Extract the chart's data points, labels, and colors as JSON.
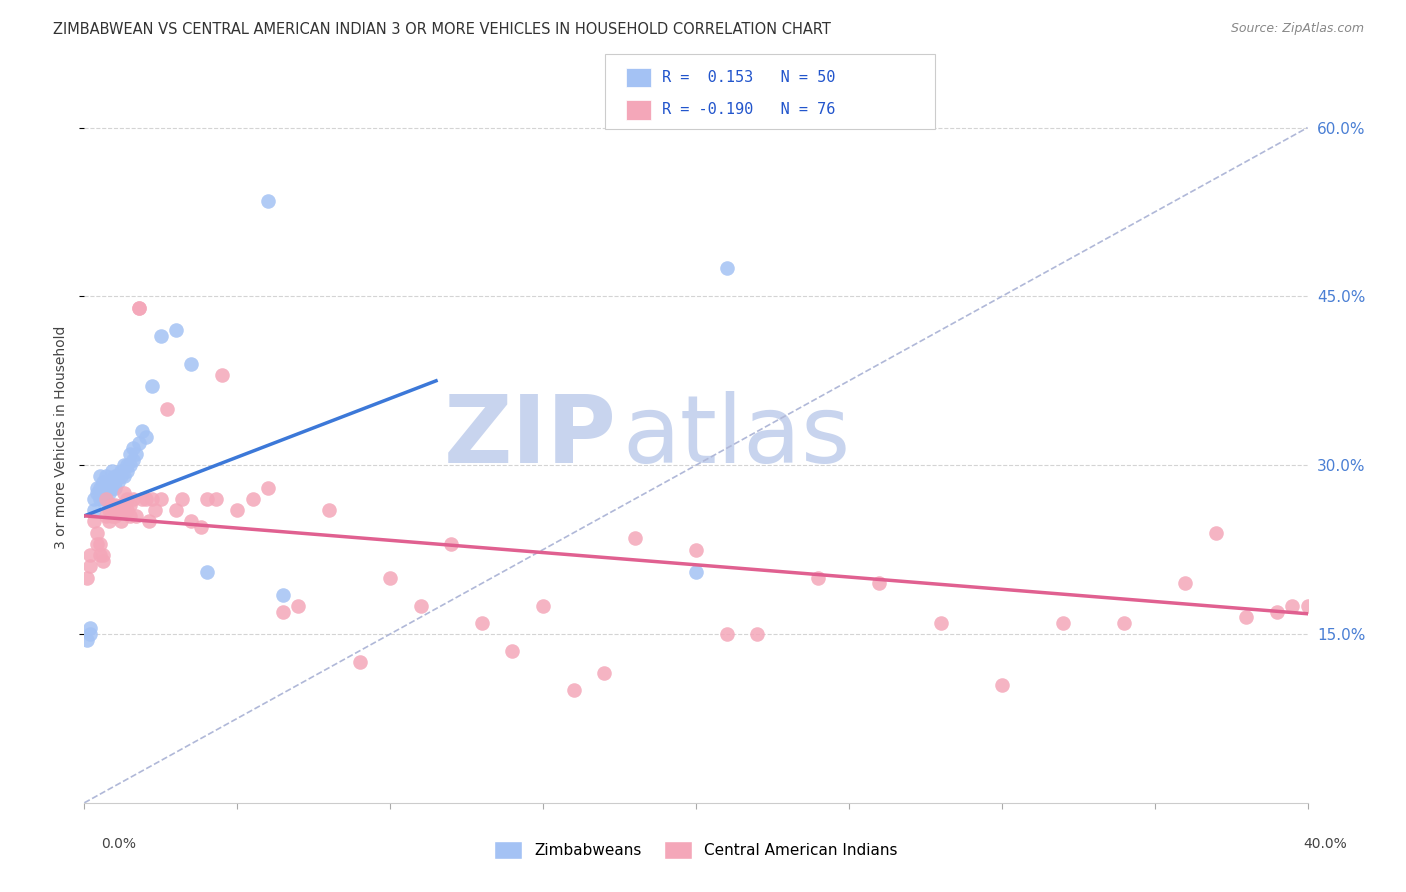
{
  "title": "ZIMBABWEAN VS CENTRAL AMERICAN INDIAN 3 OR MORE VEHICLES IN HOUSEHOLD CORRELATION CHART",
  "source": "Source: ZipAtlas.com",
  "ylabel": "3 or more Vehicles in Household",
  "xmin": 0.0,
  "xmax": 0.4,
  "ymin": 0.0,
  "ymax": 0.65,
  "yticks": [
    0.15,
    0.3,
    0.45,
    0.6
  ],
  "ytick_labels": [
    "15.0%",
    "30.0%",
    "45.0%",
    "60.0%"
  ],
  "blue_color": "#a4c2f4",
  "pink_color": "#f4a7b9",
  "blue_line_color": "#3c78d8",
  "pink_line_color": "#e06090",
  "dashed_line_color": "#b0b8d8",
  "watermark_zip_color": "#c8d4ee",
  "watermark_atlas_color": "#c8d4ee",
  "background_color": "#ffffff",
  "grid_color": "#d0d0d0",
  "blue_points_x": [
    0.001,
    0.002,
    0.002,
    0.003,
    0.003,
    0.004,
    0.004,
    0.005,
    0.005,
    0.005,
    0.006,
    0.006,
    0.006,
    0.007,
    0.007,
    0.007,
    0.008,
    0.008,
    0.008,
    0.009,
    0.009,
    0.009,
    0.01,
    0.01,
    0.01,
    0.011,
    0.011,
    0.012,
    0.012,
    0.013,
    0.013,
    0.014,
    0.014,
    0.015,
    0.015,
    0.016,
    0.016,
    0.017,
    0.018,
    0.019,
    0.02,
    0.022,
    0.025,
    0.03,
    0.035,
    0.04,
    0.06,
    0.065,
    0.2,
    0.21
  ],
  "blue_points_y": [
    0.145,
    0.15,
    0.155,
    0.26,
    0.27,
    0.275,
    0.28,
    0.27,
    0.28,
    0.29,
    0.27,
    0.275,
    0.285,
    0.275,
    0.28,
    0.29,
    0.275,
    0.28,
    0.285,
    0.28,
    0.285,
    0.295,
    0.28,
    0.285,
    0.29,
    0.285,
    0.29,
    0.29,
    0.295,
    0.29,
    0.3,
    0.295,
    0.3,
    0.3,
    0.31,
    0.305,
    0.315,
    0.31,
    0.32,
    0.33,
    0.325,
    0.37,
    0.415,
    0.42,
    0.39,
    0.205,
    0.535,
    0.185,
    0.205,
    0.475
  ],
  "pink_points_x": [
    0.001,
    0.002,
    0.002,
    0.003,
    0.004,
    0.004,
    0.005,
    0.005,
    0.006,
    0.006,
    0.007,
    0.007,
    0.008,
    0.008,
    0.009,
    0.009,
    0.01,
    0.01,
    0.011,
    0.012,
    0.012,
    0.013,
    0.013,
    0.014,
    0.014,
    0.015,
    0.015,
    0.016,
    0.017,
    0.018,
    0.018,
    0.019,
    0.02,
    0.021,
    0.022,
    0.023,
    0.025,
    0.027,
    0.03,
    0.032,
    0.035,
    0.038,
    0.04,
    0.043,
    0.045,
    0.05,
    0.055,
    0.06,
    0.065,
    0.07,
    0.08,
    0.09,
    0.1,
    0.11,
    0.12,
    0.13,
    0.14,
    0.15,
    0.16,
    0.17,
    0.18,
    0.2,
    0.21,
    0.22,
    0.24,
    0.26,
    0.28,
    0.3,
    0.32,
    0.34,
    0.36,
    0.37,
    0.38,
    0.39,
    0.395,
    0.4
  ],
  "pink_points_y": [
    0.2,
    0.21,
    0.22,
    0.25,
    0.23,
    0.24,
    0.22,
    0.23,
    0.215,
    0.22,
    0.255,
    0.27,
    0.25,
    0.26,
    0.255,
    0.265,
    0.255,
    0.265,
    0.26,
    0.25,
    0.265,
    0.26,
    0.275,
    0.27,
    0.26,
    0.255,
    0.265,
    0.27,
    0.255,
    0.44,
    0.44,
    0.27,
    0.27,
    0.25,
    0.27,
    0.26,
    0.27,
    0.35,
    0.26,
    0.27,
    0.25,
    0.245,
    0.27,
    0.27,
    0.38,
    0.26,
    0.27,
    0.28,
    0.17,
    0.175,
    0.26,
    0.125,
    0.2,
    0.175,
    0.23,
    0.16,
    0.135,
    0.175,
    0.1,
    0.115,
    0.235,
    0.225,
    0.15,
    0.15,
    0.2,
    0.195,
    0.16,
    0.105,
    0.16,
    0.16,
    0.195,
    0.24,
    0.165,
    0.17,
    0.175,
    0.175
  ],
  "blue_line_x0": 0.0,
  "blue_line_x1": 0.115,
  "blue_line_y0": 0.255,
  "blue_line_y1": 0.375,
  "pink_line_x0": 0.0,
  "pink_line_x1": 0.4,
  "pink_line_y0": 0.255,
  "pink_line_y1": 0.168,
  "dash_line_x0": 0.0,
  "dash_line_x1": 0.4,
  "dash_line_y0": 0.0,
  "dash_line_y1": 0.6
}
